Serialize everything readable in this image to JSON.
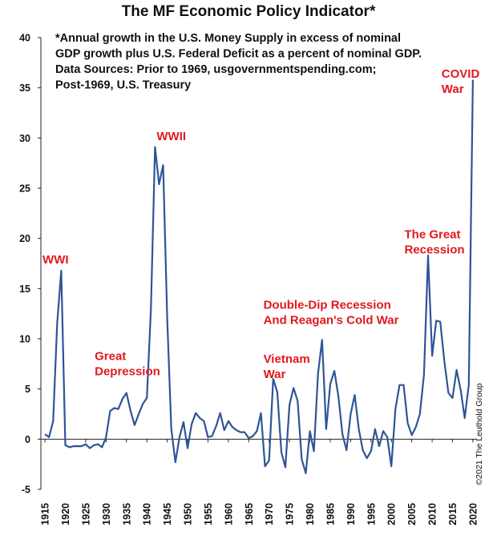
{
  "chart_data": {
    "type": "line",
    "title": "The MF Economic Policy Indicator*",
    "note": [
      "*Annual growth in the U.S. Money Supply in excess of nominal",
      "GDP growth plus U.S. Federal Deficit as a percent of nominal GDP.",
      "Data Sources: Prior to 1969, usgovernmentspending.com;",
      "Post-1969, U.S. Treasury"
    ],
    "credit": "©2021 The Leuthold Group",
    "xlabel": "",
    "ylabel": "",
    "xlim": [
      1914,
      2021
    ],
    "ylim": [
      -5,
      40
    ],
    "grid": false,
    "x_ticks": [
      1915,
      1920,
      1925,
      1930,
      1935,
      1940,
      1945,
      1950,
      1955,
      1960,
      1965,
      1970,
      1975,
      1980,
      1985,
      1990,
      1995,
      2000,
      2005,
      2010,
      2015,
      2020
    ],
    "y_ticks": [
      -5,
      0,
      5,
      10,
      15,
      20,
      25,
      30,
      35,
      40
    ],
    "color": "#2e5597",
    "series": [
      {
        "x": [
          1915,
          1916,
          1917,
          1918,
          1919,
          1920,
          1921,
          1922,
          1923,
          1924,
          1925,
          1926,
          1927,
          1928,
          1929,
          1930,
          1931,
          1932,
          1933,
          1934,
          1935,
          1936,
          1937,
          1938,
          1939,
          1940,
          1941,
          1942,
          1943,
          1944,
          1945,
          1946,
          1947,
          1948,
          1949,
          1950,
          1951,
          1952,
          1953,
          1954,
          1955,
          1956,
          1957,
          1958,
          1959,
          1960,
          1961,
          1962,
          1963,
          1964,
          1965,
          1966,
          1967,
          1968,
          1969,
          1970,
          1971,
          1972,
          1973,
          1974,
          1975,
          1976,
          1977,
          1978,
          1979,
          1980,
          1981,
          1982,
          1983,
          1984,
          1985,
          1986,
          1987,
          1988,
          1989,
          1990,
          1991,
          1992,
          1993,
          1994,
          1995,
          1996,
          1997,
          1998,
          1999,
          2000,
          2001,
          2002,
          2003,
          2004,
          2005,
          2006,
          2007,
          2008,
          2009,
          2010,
          2011,
          2012,
          2013,
          2014,
          2015,
          2016,
          2017,
          2018,
          2019,
          2020
        ],
        "values": [
          0.5,
          0.2,
          1.8,
          11.5,
          16.8,
          -0.6,
          -0.8,
          -0.7,
          -0.7,
          -0.7,
          -0.5,
          -0.9,
          -0.6,
          -0.5,
          -0.8,
          0.2,
          2.8,
          3.1,
          3.0,
          4.0,
          4.6,
          2.8,
          1.4,
          2.5,
          3.5,
          4.1,
          13.0,
          29.1,
          25.4,
          27.3,
          12.0,
          1.0,
          -2.3,
          0.2,
          1.7,
          -0.9,
          1.5,
          2.6,
          2.1,
          1.8,
          0.2,
          0.3,
          1.3,
          2.6,
          0.9,
          1.8,
          1.2,
          0.9,
          0.7,
          0.7,
          0.1,
          0.3,
          0.8,
          2.6,
          -2.7,
          -2.1,
          6.0,
          4.7,
          -1.3,
          -2.8,
          3.4,
          5.1,
          3.8,
          -2.0,
          -3.4,
          0.8,
          -1.2,
          6.5,
          9.9,
          1.0,
          5.5,
          6.8,
          4.3,
          0.5,
          -1.1,
          2.5,
          4.4,
          1.0,
          -1.1,
          -1.9,
          -1.2,
          1.0,
          -0.7,
          0.8,
          0.2,
          -2.7,
          3.0,
          5.4,
          5.4,
          1.6,
          0.4,
          1.2,
          2.5,
          6.4,
          18.3,
          8.3,
          11.8,
          11.7,
          7.8,
          4.6,
          4.1,
          6.9,
          4.9,
          2.1,
          5.4,
          35.8
        ]
      }
    ],
    "annotations": [
      {
        "lines": [
          "WWI"
        ],
        "x": 1914.4,
        "y": 17.5
      },
      {
        "lines": [
          "WWII"
        ],
        "x": 1942.4,
        "y": 29.8
      },
      {
        "lines": [
          "Great",
          "Depression"
        ],
        "x": 1927.2,
        "y": 7.9
      },
      {
        "lines": [
          "Vietnam",
          "War"
        ],
        "x": 1968.6,
        "y": 7.6
      },
      {
        "lines": [
          "Double-Dip Recession",
          "And Reagan's Cold War"
        ],
        "x": 1968.6,
        "y": 13.0
      },
      {
        "lines": [
          "The Great",
          "Recession"
        ],
        "x": 2003.2,
        "y": 20.0
      },
      {
        "lines": [
          "COVID",
          "War"
        ],
        "x": 2012.3,
        "y": 36.0
      }
    ]
  }
}
